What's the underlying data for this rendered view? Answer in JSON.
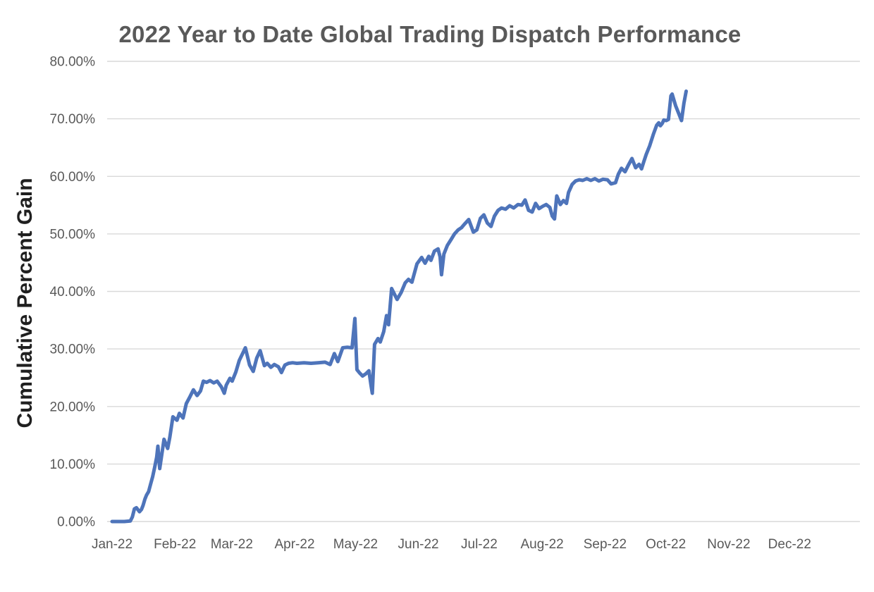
{
  "page": {
    "background": "#ffffff"
  },
  "chart_data": {
    "type": "line",
    "title": "2022 Year to Date Global Trading Dispatch Performance",
    "xlabel": "",
    "ylabel": "Cumulative Percent Gain",
    "legend": "none",
    "grid": "horizontal",
    "ylim": [
      0,
      80
    ],
    "y_ticks": [
      0,
      10,
      20,
      30,
      40,
      50,
      60,
      70,
      80
    ],
    "y_tick_labels": [
      "0.00%",
      "10.00%",
      "20.00%",
      "30.00%",
      "40.00%",
      "50.00%",
      "60.00%",
      "70.00%",
      "80.00%"
    ],
    "x_tick_labels": [
      "Jan-22",
      "Feb-22",
      "Mar-22",
      "Apr-22",
      "May-22",
      "Jun-22",
      "Jul-22",
      "Aug-22",
      "Sep-22",
      "Oct-22",
      "Nov-22",
      "Dec-22"
    ],
    "x_tick_days": [
      0,
      31,
      59,
      90,
      120,
      151,
      181,
      212,
      243,
      273,
      304,
      334
    ],
    "x_axis_day_range": [
      0,
      365
    ],
    "colors": {
      "line": "#4e74ba",
      "gridline": "#d9d9d9",
      "title_text": "#595959",
      "tick_text": "#595959",
      "y_axis_title_text": "#1f1f1f"
    },
    "series": [
      {
        "name": "Cumulative Percent Gain",
        "points_day_pct": [
          [
            0,
            0
          ],
          [
            3,
            0
          ],
          [
            6,
            0
          ],
          [
            9,
            0.1
          ],
          [
            10,
            0.8
          ],
          [
            11,
            2.2
          ],
          [
            12,
            2.4
          ],
          [
            13.5,
            1.7
          ],
          [
            14.5,
            2.1
          ],
          [
            15.3,
            2.8
          ],
          [
            16.2,
            3.9
          ],
          [
            17,
            4.6
          ],
          [
            18,
            5.2
          ],
          [
            19,
            6.5
          ],
          [
            20,
            7.8
          ],
          [
            21,
            9.4
          ],
          [
            22,
            11.2
          ],
          [
            22.6,
            13.1
          ],
          [
            23.5,
            9.2
          ],
          [
            24.5,
            11.6
          ],
          [
            25.6,
            14.3
          ],
          [
            27.4,
            12.7
          ],
          [
            28.5,
            14.7
          ],
          [
            30,
            18.2
          ],
          [
            32,
            17.6
          ],
          [
            33.2,
            18.8
          ],
          [
            35,
            18.0
          ],
          [
            36.6,
            20.5
          ],
          [
            38.4,
            21.7
          ],
          [
            40.1,
            22.9
          ],
          [
            41.9,
            21.9
          ],
          [
            43.6,
            22.7
          ],
          [
            45,
            24.4
          ],
          [
            46.6,
            24.2
          ],
          [
            48.3,
            24.5
          ],
          [
            50.1,
            24.1
          ],
          [
            51.8,
            24.4
          ],
          [
            53.9,
            23.4
          ],
          [
            55.3,
            22.3
          ],
          [
            56.3,
            23.7
          ],
          [
            58.1,
            24.9
          ],
          [
            59.2,
            24.4
          ],
          [
            61,
            26.0
          ],
          [
            62.7,
            28.0
          ],
          [
            64.5,
            29.3
          ],
          [
            65.7,
            30.2
          ],
          [
            67.8,
            27.2
          ],
          [
            69.6,
            26.1
          ],
          [
            71.3,
            28.4
          ],
          [
            73,
            29.7
          ],
          [
            75.1,
            27.1
          ],
          [
            76.5,
            27.5
          ],
          [
            78.3,
            26.8
          ],
          [
            80,
            27.3
          ],
          [
            82,
            26.9
          ],
          [
            83.5,
            25.9
          ],
          [
            85.2,
            27.2
          ],
          [
            87,
            27.5
          ],
          [
            89,
            27.6
          ],
          [
            91.1,
            27.5
          ],
          [
            94.6,
            27.6
          ],
          [
            98.1,
            27.5
          ],
          [
            101.6,
            27.6
          ],
          [
            105,
            27.7
          ],
          [
            107.5,
            27.3
          ],
          [
            109.6,
            29.2
          ],
          [
            111.3,
            27.8
          ],
          [
            113.7,
            30.2
          ],
          [
            116,
            30.3
          ],
          [
            118.3,
            30.2
          ],
          [
            119.7,
            35.3
          ],
          [
            120.7,
            26.4
          ],
          [
            122.1,
            25.8
          ],
          [
            123.5,
            25.3
          ],
          [
            125.2,
            25.7
          ],
          [
            126.6,
            26.2
          ],
          [
            127.7,
            23.6
          ],
          [
            128.3,
            22.3
          ],
          [
            129.4,
            30.8
          ],
          [
            131.1,
            31.8
          ],
          [
            132.2,
            31.2
          ],
          [
            133.9,
            33.0
          ],
          [
            135.3,
            35.8
          ],
          [
            136.3,
            34.2
          ],
          [
            137.8,
            40.5
          ],
          [
            140.5,
            38.6
          ],
          [
            142.5,
            39.8
          ],
          [
            144.5,
            41.5
          ],
          [
            146.1,
            42.1
          ],
          [
            147.8,
            41.6
          ],
          [
            150.3,
            44.8
          ],
          [
            152.6,
            45.9
          ],
          [
            154.3,
            44.9
          ],
          [
            156.1,
            46.1
          ],
          [
            157.2,
            45.4
          ],
          [
            158.9,
            47.0
          ],
          [
            160.7,
            47.4
          ],
          [
            161.7,
            46.0
          ],
          [
            162.4,
            42.9
          ],
          [
            163.6,
            46.5
          ],
          [
            165.3,
            48.0
          ],
          [
            167.1,
            49.0
          ],
          [
            168.8,
            50.0
          ],
          [
            170.6,
            50.7
          ],
          [
            172.3,
            51.1
          ],
          [
            173.5,
            51.6
          ],
          [
            175.8,
            52.5
          ],
          [
            178.1,
            50.3
          ],
          [
            179.8,
            50.7
          ],
          [
            181.6,
            52.7
          ],
          [
            183.3,
            53.3
          ],
          [
            185,
            51.9
          ],
          [
            186.8,
            51.3
          ],
          [
            188.5,
            53.1
          ],
          [
            190.3,
            54.1
          ],
          [
            192,
            54.5
          ],
          [
            194,
            54.3
          ],
          [
            196,
            54.9
          ],
          [
            198,
            54.5
          ],
          [
            200.1,
            55.1
          ],
          [
            202,
            55.0
          ],
          [
            203.6,
            55.9
          ],
          [
            205.3,
            54.1
          ],
          [
            207.1,
            53.8
          ],
          [
            208.8,
            55.3
          ],
          [
            210.5,
            54.4
          ],
          [
            212.3,
            54.8
          ],
          [
            214,
            55.1
          ],
          [
            215.8,
            54.6
          ],
          [
            217,
            53.1
          ],
          [
            218.1,
            52.6
          ],
          [
            219.2,
            56.6
          ],
          [
            221,
            55.1
          ],
          [
            222.5,
            55.8
          ],
          [
            224,
            55.3
          ],
          [
            225,
            57.2
          ],
          [
            226.8,
            58.6
          ],
          [
            228.5,
            59.2
          ],
          [
            230.3,
            59.4
          ],
          [
            232,
            59.3
          ],
          [
            234,
            59.6
          ],
          [
            236,
            59.3
          ],
          [
            238,
            59.6
          ],
          [
            240,
            59.2
          ],
          [
            242,
            59.5
          ],
          [
            244.2,
            59.4
          ],
          [
            246,
            58.7
          ],
          [
            248.2,
            58.9
          ],
          [
            249.6,
            60.4
          ],
          [
            251.1,
            61.4
          ],
          [
            252.9,
            60.8
          ],
          [
            254.6,
            62.0
          ],
          [
            256.3,
            63.1
          ],
          [
            258.1,
            61.5
          ],
          [
            259.8,
            62.1
          ],
          [
            261,
            61.3
          ],
          [
            262.1,
            62.5
          ],
          [
            263.3,
            63.8
          ],
          [
            265,
            65.3
          ],
          [
            266.8,
            67.3
          ],
          [
            268.5,
            68.9
          ],
          [
            269.5,
            69.3
          ],
          [
            270.3,
            68.8
          ],
          [
            271.2,
            69.2
          ],
          [
            272,
            69.8
          ],
          [
            273.2,
            69.7
          ],
          [
            274.3,
            69.9
          ],
          [
            275.5,
            74.0
          ],
          [
            276.1,
            74.3
          ],
          [
            277.8,
            72.3
          ],
          [
            279.6,
            70.7
          ],
          [
            280.7,
            69.7
          ],
          [
            281.9,
            72.7
          ],
          [
            283,
            74.8
          ]
        ]
      }
    ]
  }
}
